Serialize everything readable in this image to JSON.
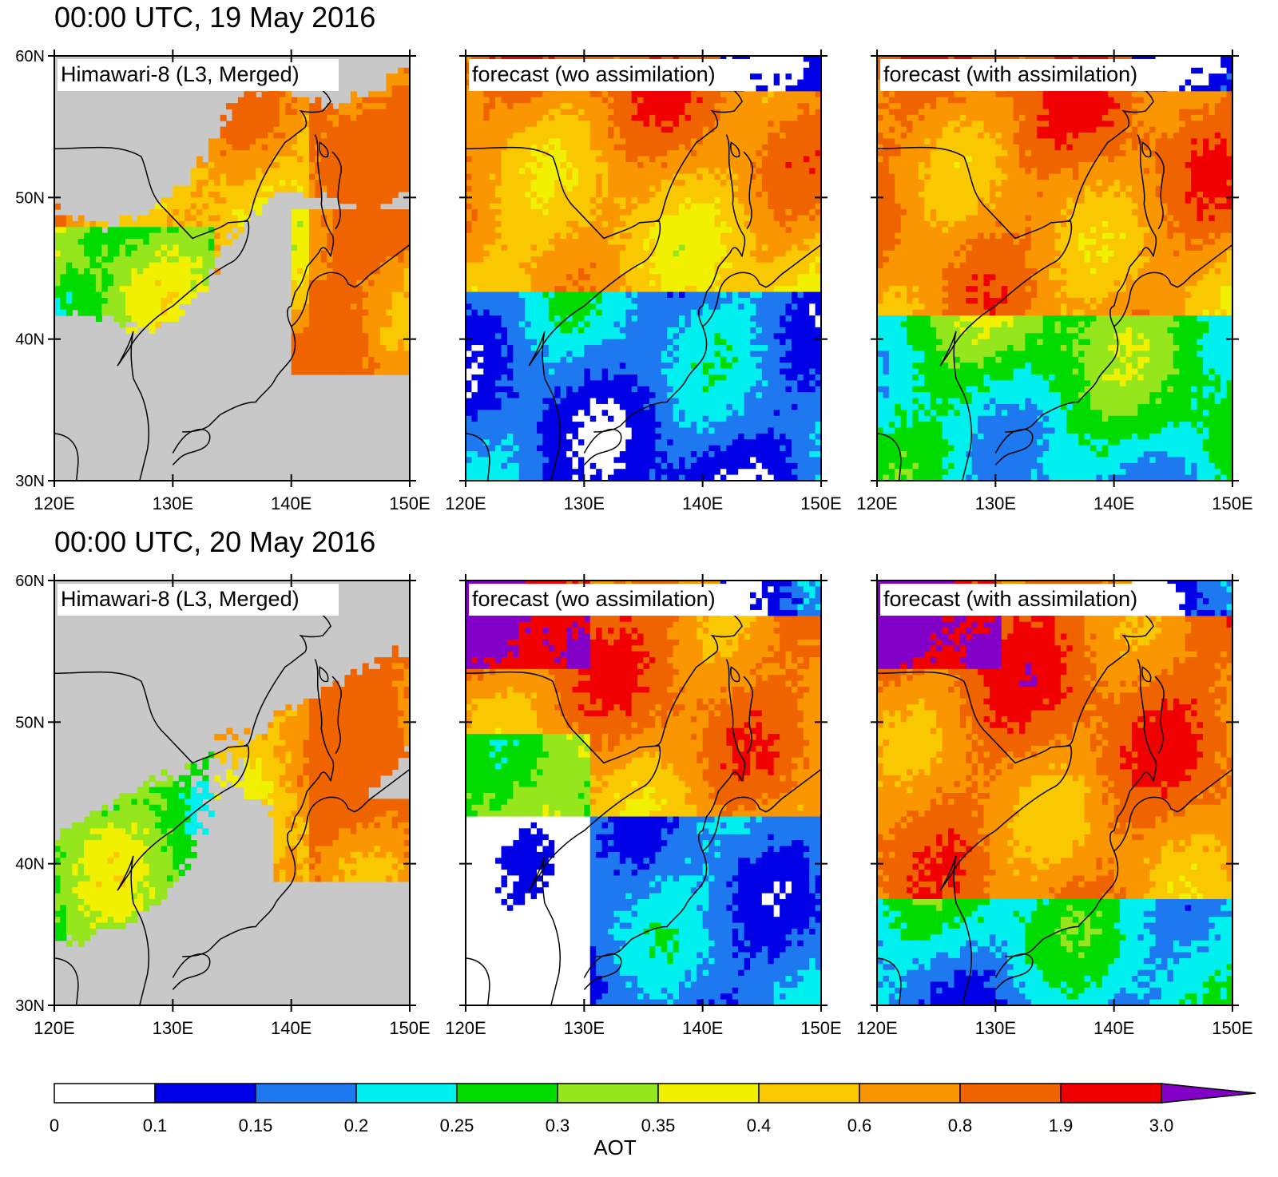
{
  "rows": [
    {
      "title": "00:00 UTC, 19 May 2016",
      "panels": [
        {
          "label": "Himawari-8 (L3, Merged)",
          "kind": "obs"
        },
        {
          "label": "forecast (wo assimilation)",
          "kind": "fc_wo"
        },
        {
          "label": "forecast (with assimilation)",
          "kind": "fc_with"
        }
      ]
    },
    {
      "title": "00:00 UTC, 20 May 2016",
      "panels": [
        {
          "label": "Himawari-8 (L3, Merged)",
          "kind": "obs"
        },
        {
          "label": "forecast (wo assimilation)",
          "kind": "fc_wo"
        },
        {
          "label": "forecast (with assimilation)",
          "kind": "fc_with"
        }
      ]
    }
  ],
  "axes": {
    "lat_ticks": [
      "60N",
      "50N",
      "40N",
      "30N"
    ],
    "lon_ticks": [
      "120E",
      "130E",
      "140E",
      "150E"
    ]
  },
  "colorbar": {
    "title": "AOT",
    "tick_labels": [
      "0",
      "0.1",
      "0.15",
      "0.2",
      "0.25",
      "0.3",
      "0.35",
      "0.4",
      "0.6",
      "0.8",
      "1.9",
      "3.0"
    ],
    "colors": [
      "#ffffff",
      "#0000e6",
      "#1e78f0",
      "#00f0f0",
      "#00dc00",
      "#96e61e",
      "#f0f000",
      "#fac800",
      "#fa9600",
      "#f06400",
      "#f00000",
      "#8200c8"
    ]
  },
  "colors": {
    "no_data": "#c8c8c8",
    "coastline": "#000000"
  }
}
